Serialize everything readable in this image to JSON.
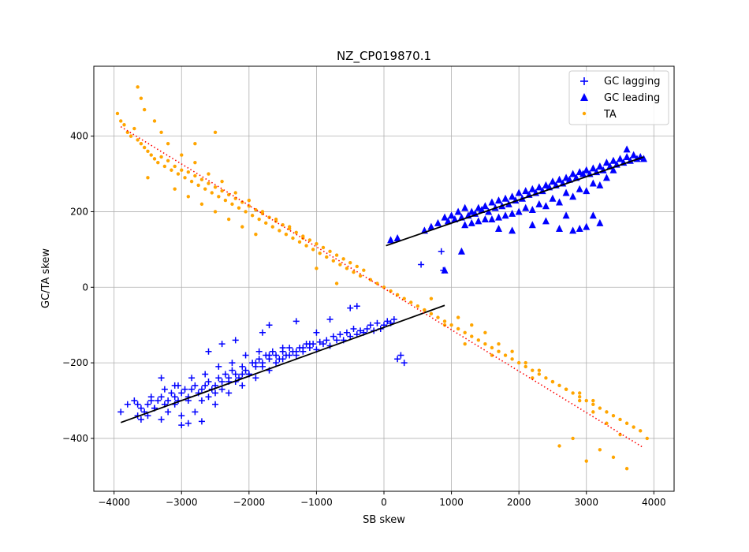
{
  "chart_data": {
    "type": "scatter",
    "title": "NZ_CP019870.1",
    "xlabel": "SB skew",
    "ylabel": "GC/TA skew",
    "xlim": [
      -4300,
      4300
    ],
    "ylim": [
      -540,
      585
    ],
    "xticks": [
      -4000,
      -3000,
      -2000,
      -1000,
      0,
      1000,
      2000,
      3000,
      4000
    ],
    "xtick_labels": [
      "−4000",
      "−3000",
      "−2000",
      "−1000",
      "0",
      "1000",
      "2000",
      "3000",
      "4000"
    ],
    "yticks": [
      -400,
      -200,
      0,
      200,
      400
    ],
    "ytick_labels": [
      "−400",
      "−200",
      "0",
      "200",
      "400"
    ],
    "grid": true,
    "legend_position": "top-right",
    "series": [
      {
        "name": "GC lagging",
        "marker": "plus",
        "color": "#0000ff",
        "x": [
          -3900,
          -3800,
          -3700,
          -3650,
          -3600,
          -3550,
          -3500,
          -3450,
          -3400,
          -3350,
          -3300,
          -3250,
          -3200,
          -3150,
          -3100,
          -3050,
          -3000,
          -2950,
          -2900,
          -2850,
          -2800,
          -2750,
          -2700,
          -2650,
          -2600,
          -2550,
          -2500,
          -2450,
          -2400,
          -2350,
          -2300,
          -2250,
          -2200,
          -2150,
          -2100,
          -2050,
          -2000,
          -1950,
          -1900,
          -1850,
          -1800,
          -1750,
          -1700,
          -1650,
          -1600,
          -1550,
          -1500,
          -1450,
          -1400,
          -1350,
          -1300,
          -1250,
          -1200,
          -1150,
          -1100,
          -1050,
          -1000,
          -950,
          -900,
          -850,
          -800,
          -750,
          -700,
          -650,
          -600,
          -550,
          -500,
          -450,
          -400,
          -350,
          -300,
          -250,
          -200,
          -150,
          -100,
          -50,
          0,
          50,
          100,
          150,
          200,
          250,
          300,
          -3600,
          -3500,
          -3400,
          -3300,
          -3200,
          -3100,
          -3000,
          -2900,
          -2800,
          -2700,
          -2600,
          -2500,
          -2400,
          -2300,
          -2200,
          -2100,
          -2000,
          -1900,
          -1800,
          -1700,
          -1600,
          -1500,
          -1400,
          -1300,
          -1200,
          -1100,
          -3000,
          -2900,
          -2700,
          -2500,
          -2300,
          -2100,
          -1900,
          -1700,
          -1500,
          -3650,
          -3450,
          -3250,
          -3050,
          -2850,
          -2650,
          -2450,
          -2250,
          -2050,
          -1850,
          550,
          850,
          880,
          -1300,
          -800,
          -500,
          -400,
          -1000,
          -2600,
          -2400,
          -2200,
          -1800,
          -1700,
          -3300,
          -3100
        ],
        "y": [
          -330,
          -310,
          -300,
          -340,
          -320,
          -330,
          -310,
          -300,
          -320,
          -300,
          -290,
          -310,
          -300,
          -280,
          -290,
          -300,
          -280,
          -270,
          -290,
          -270,
          -260,
          -280,
          -270,
          -260,
          -250,
          -270,
          -260,
          -240,
          -250,
          -230,
          -240,
          -220,
          -230,
          -240,
          -210,
          -220,
          -230,
          -200,
          -210,
          -190,
          -200,
          -180,
          -190,
          -170,
          -180,
          -190,
          -170,
          -180,
          -160,
          -170,
          -180,
          -160,
          -170,
          -150,
          -160,
          -150,
          -165,
          -145,
          -150,
          -140,
          -155,
          -130,
          -140,
          -125,
          -140,
          -120,
          -130,
          -110,
          -125,
          -115,
          -120,
          -110,
          -100,
          -115,
          -95,
          -110,
          -100,
          -90,
          -95,
          -85,
          -190,
          -180,
          -200,
          -350,
          -340,
          -320,
          -350,
          -330,
          -310,
          -340,
          -300,
          -330,
          -300,
          -290,
          -310,
          -270,
          -280,
          -250,
          -260,
          -230,
          -240,
          -210,
          -220,
          -200,
          -190,
          -180,
          -170,
          -160,
          -150,
          -365,
          -360,
          -355,
          -280,
          -250,
          -230,
          -200,
          -180,
          -160,
          -310,
          -290,
          -270,
          -260,
          -240,
          -230,
          -210,
          -200,
          -180,
          -170,
          60,
          95,
          45,
          -90,
          -85,
          -55,
          -50,
          -120,
          -170,
          -150,
          -140,
          -120,
          -100,
          -240,
          -260
        ]
      },
      {
        "name": "GC leading",
        "marker": "triangle",
        "color": "#0000ff",
        "x": [
          100,
          200,
          600,
          700,
          800,
          900,
          950,
          1000,
          1050,
          1100,
          1150,
          1200,
          1250,
          1300,
          1350,
          1400,
          1450,
          1500,
          1550,
          1600,
          1650,
          1700,
          1750,
          1800,
          1850,
          1900,
          1950,
          2000,
          2050,
          2100,
          2150,
          2200,
          2250,
          2300,
          2350,
          2400,
          2450,
          2500,
          2550,
          2600,
          2650,
          2700,
          2750,
          2800,
          2850,
          2900,
          2950,
          3000,
          3050,
          3100,
          3150,
          3200,
          3250,
          3300,
          3350,
          3400,
          3450,
          3500,
          3550,
          3600,
          3650,
          3700,
          3750,
          3800,
          3850,
          1200,
          1400,
          1600,
          1800,
          2000,
          2200,
          2400,
          2600,
          2800,
          3000,
          3200,
          1300,
          1500,
          1700,
          1900,
          2100,
          2300,
          2500,
          2700,
          2900,
          3100,
          3300,
          2600,
          2800,
          2900,
          3000,
          3200,
          2700,
          1900,
          1700,
          900,
          1150,
          2400,
          2200,
          3100,
          3400,
          3600
        ],
        "y": [
          125,
          130,
          150,
          160,
          170,
          185,
          175,
          190,
          180,
          200,
          185,
          210,
          190,
          200,
          195,
          210,
          205,
          215,
          200,
          225,
          210,
          230,
          215,
          235,
          220,
          240,
          230,
          250,
          235,
          255,
          245,
          260,
          250,
          265,
          255,
          270,
          265,
          280,
          270,
          285,
          275,
          290,
          285,
          300,
          290,
          305,
          300,
          310,
          300,
          315,
          305,
          320,
          310,
          330,
          320,
          335,
          325,
          340,
          330,
          345,
          335,
          350,
          340,
          345,
          340,
          165,
          175,
          180,
          190,
          200,
          205,
          215,
          225,
          240,
          255,
          270,
          170,
          180,
          185,
          195,
          210,
          220,
          235,
          250,
          260,
          275,
          290,
          155,
          150,
          155,
          160,
          170,
          190,
          150,
          155,
          45,
          95,
          175,
          165,
          190,
          310,
          365
        ]
      },
      {
        "name": "TA",
        "marker": "dot",
        "color": "#ffa500",
        "x": [
          -3950,
          -3900,
          -3850,
          -3800,
          -3750,
          -3700,
          -3650,
          -3600,
          -3550,
          -3500,
          -3450,
          -3400,
          -3350,
          -3300,
          -3250,
          -3200,
          -3150,
          -3100,
          -3050,
          -3000,
          -2950,
          -2900,
          -2850,
          -2800,
          -2750,
          -2700,
          -2650,
          -2600,
          -2550,
          -2500,
          -2450,
          -2400,
          -2350,
          -2300,
          -2250,
          -2200,
          -2150,
          -2100,
          -2050,
          -2000,
          -1950,
          -1900,
          -1850,
          -1800,
          -1750,
          -1700,
          -1650,
          -1600,
          -1550,
          -1500,
          -1450,
          -1400,
          -1350,
          -1300,
          -1250,
          -1200,
          -1150,
          -1100,
          -1050,
          -1000,
          -950,
          -900,
          -850,
          -800,
          -750,
          -700,
          -650,
          -600,
          -550,
          -500,
          -450,
          -400,
          -350,
          -300,
          -200,
          -100,
          0,
          100,
          200,
          300,
          400,
          500,
          600,
          700,
          800,
          900,
          1000,
          1100,
          1200,
          1300,
          1400,
          1500,
          1600,
          1700,
          1800,
          1900,
          2000,
          2100,
          2200,
          2300,
          2400,
          2500,
          2600,
          2700,
          2800,
          2900,
          3000,
          3100,
          3200,
          3300,
          3400,
          3500,
          3600,
          3700,
          3800,
          3900,
          -3650,
          -3600,
          -3550,
          -3400,
          -3300,
          -3200,
          -3000,
          -2800,
          -2600,
          -2400,
          -2200,
          -2000,
          -1800,
          -1600,
          -1400,
          -1200,
          -3500,
          -3100,
          -2900,
          -2700,
          -2500,
          -2300,
          -2100,
          -1900,
          1100,
          1300,
          1500,
          1700,
          1900,
          2100,
          2300,
          2500,
          2700,
          2900,
          3100,
          3300,
          3500,
          2600,
          2800,
          3000,
          3200,
          3400,
          3600,
          700,
          600,
          900,
          1200,
          1600,
          2200,
          -2500,
          -2800,
          -700,
          -1000,
          2900,
          3100
        ],
        "y": [
          460,
          440,
          430,
          410,
          400,
          420,
          390,
          380,
          370,
          360,
          350,
          340,
          330,
          345,
          320,
          335,
          310,
          320,
          300,
          310,
          290,
          305,
          280,
          295,
          270,
          285,
          260,
          275,
          250,
          265,
          240,
          255,
          230,
          245,
          220,
          235,
          210,
          225,
          200,
          215,
          190,
          205,
          180,
          195,
          170,
          185,
          160,
          175,
          150,
          165,
          140,
          155,
          130,
          145,
          120,
          135,
          110,
          125,
          100,
          115,
          90,
          105,
          80,
          95,
          70,
          85,
          60,
          75,
          50,
          65,
          40,
          55,
          30,
          45,
          20,
          10,
          0,
          -10,
          -20,
          -30,
          -40,
          -50,
          -60,
          -70,
          -80,
          -90,
          -100,
          -110,
          -120,
          -130,
          -140,
          -150,
          -160,
          -170,
          -180,
          -190,
          -200,
          -210,
          -220,
          -230,
          -240,
          -250,
          -260,
          -270,
          -280,
          -290,
          -300,
          -310,
          -320,
          -330,
          -340,
          -350,
          -360,
          -370,
          -380,
          -400,
          530,
          500,
          470,
          440,
          410,
          380,
          350,
          330,
          300,
          280,
          250,
          230,
          200,
          180,
          160,
          130,
          290,
          260,
          240,
          220,
          200,
          180,
          160,
          140,
          -80,
          -100,
          -120,
          -150,
          -170,
          -200,
          -220,
          -250,
          -270,
          -300,
          -330,
          -360,
          -390,
          -420,
          -400,
          -460,
          -430,
          -450,
          -480,
          -30,
          -60,
          -100,
          -150,
          -180,
          -240,
          410,
          380,
          10,
          50,
          -280,
          -300
        ]
      }
    ],
    "fit_lines": [
      {
        "series": "GC lagging",
        "color": "#000000",
        "style": "solid",
        "x": [
          -3900,
          900
        ],
        "y": [
          -358,
          -48
        ]
      },
      {
        "series": "GC leading",
        "color": "#000000",
        "style": "solid",
        "x": [
          30,
          3850
        ],
        "y": [
          110,
          345
        ]
      },
      {
        "series": "TA",
        "color": "#ff0000",
        "style": "dotted",
        "x": [
          -3900,
          3850
        ],
        "y": [
          425,
          -425
        ]
      }
    ]
  }
}
